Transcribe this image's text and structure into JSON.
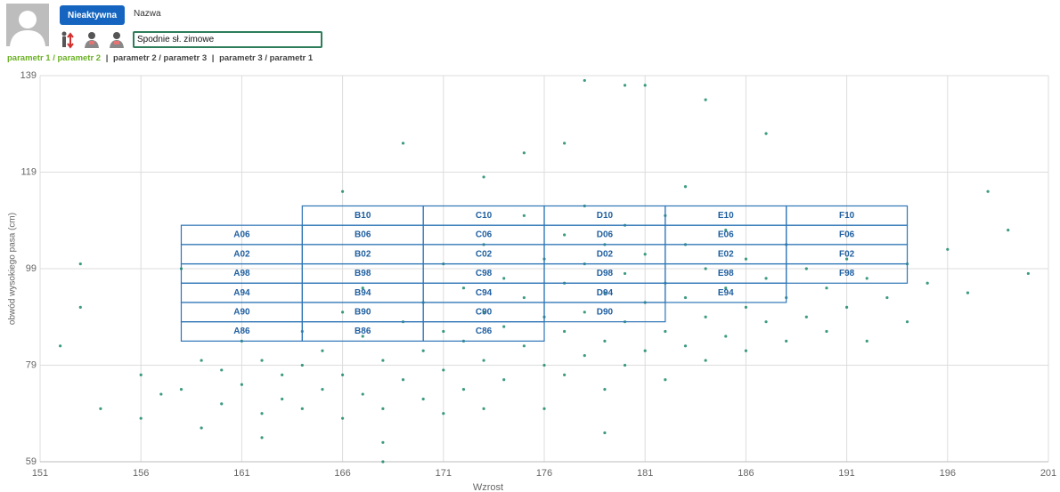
{
  "header": {
    "status_button": "Nieaktywna",
    "name_label": "Nazwa",
    "name_input": "Spodnie sł. zimowe",
    "tabs": [
      "parametr 1 / parametr 2",
      "parametr 2 / parametr 3",
      "parametr 3 / parametr 1"
    ],
    "tab_separator": "|"
  },
  "chart_data": {
    "type": "scatter",
    "x_label": "Wzrost",
    "y_label": "obwód wysokiego pasa (cm)",
    "color": "#1a8a6a",
    "xlim": [
      151,
      201
    ],
    "xticks": [
      151,
      156,
      161,
      166,
      171,
      176,
      181,
      186,
      191,
      196,
      201
    ],
    "ylim": [
      59,
      139
    ],
    "yticks": [
      59,
      79,
      99,
      119,
      139
    ],
    "grid": true,
    "x": [
      152,
      153,
      153,
      154,
      156,
      156,
      157,
      158,
      158,
      159,
      159,
      160,
      160,
      161,
      161,
      162,
      162,
      162,
      163,
      163,
      164,
      164,
      164,
      165,
      165,
      166,
      166,
      166,
      167,
      167,
      167,
      168,
      168,
      168,
      169,
      169,
      169,
      170,
      170,
      170,
      171,
      171,
      171,
      171,
      172,
      172,
      172,
      173,
      173,
      173,
      173,
      174,
      174,
      174,
      175,
      175,
      175,
      175,
      176,
      176,
      176,
      176,
      177,
      177,
      177,
      177,
      177,
      178,
      178,
      178,
      178,
      178,
      179,
      179,
      179,
      179,
      180,
      180,
      180,
      180,
      180,
      181,
      181,
      181,
      181,
      182,
      182,
      182,
      182,
      183,
      183,
      183,
      184,
      184,
      184,
      184,
      185,
      185,
      185,
      186,
      186,
      186,
      187,
      187,
      187,
      188,
      188,
      188,
      189,
      189,
      190,
      190,
      191,
      191,
      192,
      192,
      193,
      194,
      194,
      195,
      196,
      197,
      198,
      199,
      200,
      166,
      173,
      183,
      168,
      179
    ],
    "y": [
      83,
      91,
      100,
      70,
      77,
      68,
      73,
      99,
      74,
      80,
      66,
      78,
      71,
      84,
      75,
      69,
      80,
      64,
      77,
      72,
      86,
      79,
      70,
      74,
      82,
      90,
      77,
      68,
      85,
      73,
      95,
      80,
      70,
      63,
      88,
      76,
      125,
      92,
      82,
      72,
      100,
      86,
      78,
      69,
      95,
      84,
      74,
      104,
      90,
      80,
      70,
      97,
      87,
      76,
      110,
      93,
      83,
      123,
      101,
      89,
      79,
      70,
      106,
      96,
      86,
      77,
      125,
      112,
      100,
      90,
      81,
      138,
      104,
      94,
      84,
      74,
      108,
      98,
      88,
      137,
      79,
      102,
      92,
      82,
      137,
      110,
      96,
      86,
      76,
      104,
      93,
      83,
      99,
      89,
      80,
      134,
      107,
      95,
      85,
      101,
      91,
      82,
      97,
      88,
      127,
      104,
      93,
      84,
      99,
      89,
      95,
      86,
      101,
      91,
      97,
      84,
      93,
      100,
      88,
      96,
      103,
      94,
      115,
      107,
      98,
      115,
      118,
      116,
      59,
      65
    ],
    "box_color": "#2e75b6",
    "size_boxes": [
      {
        "label": "A06",
        "x": [
          158,
          164
        ],
        "y": [
          104,
          108
        ]
      },
      {
        "label": "A02",
        "x": [
          158,
          164
        ],
        "y": [
          100,
          104
        ]
      },
      {
        "label": "A98",
        "x": [
          158,
          164
        ],
        "y": [
          96,
          100
        ]
      },
      {
        "label": "A94",
        "x": [
          158,
          164
        ],
        "y": [
          92,
          96
        ]
      },
      {
        "label": "A90",
        "x": [
          158,
          164
        ],
        "y": [
          88,
          92
        ]
      },
      {
        "label": "A86",
        "x": [
          158,
          164
        ],
        "y": [
          84,
          88
        ]
      },
      {
        "label": "B10",
        "x": [
          164,
          170
        ],
        "y": [
          108,
          112
        ]
      },
      {
        "label": "B06",
        "x": [
          164,
          170
        ],
        "y": [
          104,
          108
        ]
      },
      {
        "label": "B02",
        "x": [
          164,
          170
        ],
        "y": [
          100,
          104
        ]
      },
      {
        "label": "B98",
        "x": [
          164,
          170
        ],
        "y": [
          96,
          100
        ]
      },
      {
        "label": "B94",
        "x": [
          164,
          170
        ],
        "y": [
          92,
          96
        ]
      },
      {
        "label": "B90",
        "x": [
          164,
          170
        ],
        "y": [
          88,
          92
        ]
      },
      {
        "label": "B86",
        "x": [
          164,
          170
        ],
        "y": [
          84,
          88
        ]
      },
      {
        "label": "C10",
        "x": [
          170,
          176
        ],
        "y": [
          108,
          112
        ]
      },
      {
        "label": "C06",
        "x": [
          170,
          176
        ],
        "y": [
          104,
          108
        ]
      },
      {
        "label": "C02",
        "x": [
          170,
          176
        ],
        "y": [
          100,
          104
        ]
      },
      {
        "label": "C98",
        "x": [
          170,
          176
        ],
        "y": [
          96,
          100
        ]
      },
      {
        "label": "C94",
        "x": [
          170,
          176
        ],
        "y": [
          92,
          96
        ]
      },
      {
        "label": "C90",
        "x": [
          170,
          176
        ],
        "y": [
          88,
          92
        ]
      },
      {
        "label": "C86",
        "x": [
          170,
          176
        ],
        "y": [
          84,
          88
        ]
      },
      {
        "label": "D10",
        "x": [
          176,
          182
        ],
        "y": [
          108,
          112
        ]
      },
      {
        "label": "D06",
        "x": [
          176,
          182
        ],
        "y": [
          104,
          108
        ]
      },
      {
        "label": "D02",
        "x": [
          176,
          182
        ],
        "y": [
          100,
          104
        ]
      },
      {
        "label": "D98",
        "x": [
          176,
          182
        ],
        "y": [
          96,
          100
        ]
      },
      {
        "label": "D94",
        "x": [
          176,
          182
        ],
        "y": [
          92,
          96
        ]
      },
      {
        "label": "D90",
        "x": [
          176,
          182
        ],
        "y": [
          88,
          92
        ]
      },
      {
        "label": "E10",
        "x": [
          182,
          188
        ],
        "y": [
          108,
          112
        ]
      },
      {
        "label": "E06",
        "x": [
          182,
          188
        ],
        "y": [
          104,
          108
        ]
      },
      {
        "label": "E02",
        "x": [
          182,
          188
        ],
        "y": [
          100,
          104
        ]
      },
      {
        "label": "E98",
        "x": [
          182,
          188
        ],
        "y": [
          96,
          100
        ]
      },
      {
        "label": "E94",
        "x": [
          182,
          188
        ],
        "y": [
          92,
          96
        ]
      },
      {
        "label": "F10",
        "x": [
          188,
          194
        ],
        "y": [
          108,
          112
        ]
      },
      {
        "label": "F06",
        "x": [
          188,
          194
        ],
        "y": [
          104,
          108
        ]
      },
      {
        "label": "F02",
        "x": [
          188,
          194
        ],
        "y": [
          100,
          104
        ]
      },
      {
        "label": "F98",
        "x": [
          188,
          194
        ],
        "y": [
          96,
          100
        ]
      }
    ]
  }
}
